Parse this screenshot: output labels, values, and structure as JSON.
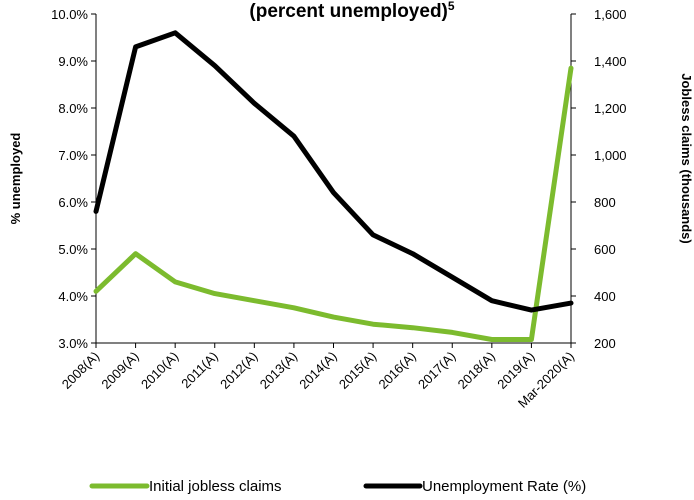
{
  "chart_data": {
    "type": "line",
    "title_partial": "(percent unemployed)",
    "title_superscript": "5",
    "categories": [
      "2008(A)",
      "2009(A)",
      "2010(A)",
      "2011(A)",
      "2012(A)",
      "2013(A)",
      "2014(A)",
      "2015(A)",
      "2016(A)",
      "2017(A)",
      "2018(A)",
      "2019(A)",
      "Mar-2020(A)"
    ],
    "y_left": {
      "label": "% unemployed",
      "min": 3.0,
      "max": 10.0,
      "ticks": [
        "3.0%",
        "4.0%",
        "5.0%",
        "6.0%",
        "7.0%",
        "8.0%",
        "9.0%",
        "10.0%"
      ]
    },
    "y_right": {
      "label": "Jobless claims (thousands)",
      "min": 200,
      "max": 1600,
      "ticks": [
        "200",
        "400",
        "600",
        "800",
        "1,000",
        "1,200",
        "1,400",
        "1,600"
      ]
    },
    "series": [
      {
        "name": "Initial jobless claims",
        "axis": "right",
        "color": "#7cbb2e",
        "values": [
          420,
          580,
          460,
          410,
          380,
          350,
          310,
          280,
          265,
          245,
          215,
          215,
          1370
        ]
      },
      {
        "name": "Unemployment Rate (%)",
        "axis": "left",
        "color": "#000000",
        "values": [
          5.8,
          9.3,
          9.6,
          8.9,
          8.1,
          7.4,
          6.2,
          5.3,
          4.9,
          4.4,
          3.9,
          3.7,
          3.85
        ]
      }
    ],
    "legend_position": "bottom",
    "grid": false
  }
}
